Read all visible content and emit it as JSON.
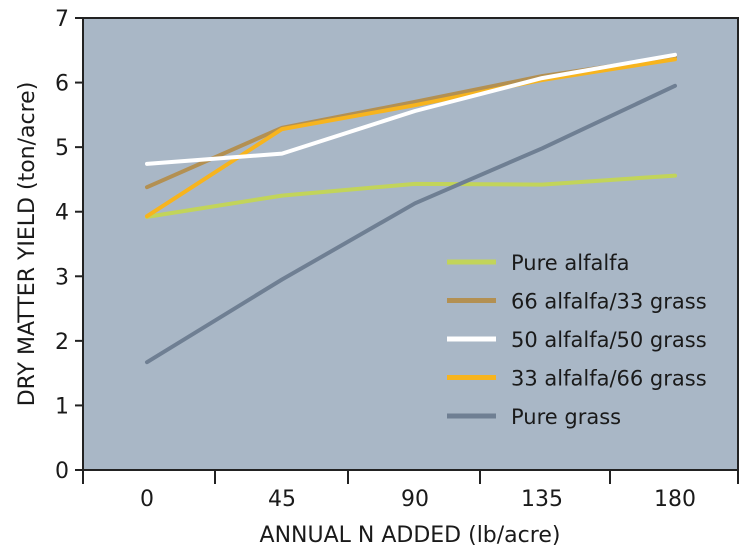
{
  "chart_data": {
    "type": "line",
    "xlabel": "ANNUAL N ADDED (lb/acre)",
    "ylabel": "DRY MATTER YIELD (ton/acre)",
    "x": [
      0,
      45,
      90,
      135,
      180
    ],
    "x_ticks": [
      "0",
      "45",
      "90",
      "135",
      "180"
    ],
    "ylim": [
      0,
      7
    ],
    "y_ticks": [
      "0",
      "1",
      "2",
      "3",
      "4",
      "5",
      "6",
      "7"
    ],
    "grid": false,
    "legend_position": "bottom-right",
    "plot_background": "#a9b7c6",
    "series": [
      {
        "name": "Pure alfalfa",
        "color": "#c2d45a",
        "values": [
          3.92,
          4.25,
          4.43,
          4.42,
          4.56
        ]
      },
      {
        "name": "66 alfalfa/33 grass",
        "color": "#b39052",
        "values": [
          4.38,
          5.3,
          5.7,
          6.1,
          6.4
        ]
      },
      {
        "name": "50 alfalfa/50 grass",
        "color": "#ffffff",
        "values": [
          4.74,
          4.9,
          5.56,
          6.07,
          6.43
        ]
      },
      {
        "name": "33 alfalfa/66 grass",
        "color": "#f7b41e",
        "values": [
          3.93,
          5.28,
          5.65,
          6.04,
          6.36
        ]
      },
      {
        "name": "Pure grass",
        "color": "#6f7f93",
        "values": [
          1.67,
          2.95,
          4.13,
          4.98,
          5.95
        ]
      }
    ]
  }
}
